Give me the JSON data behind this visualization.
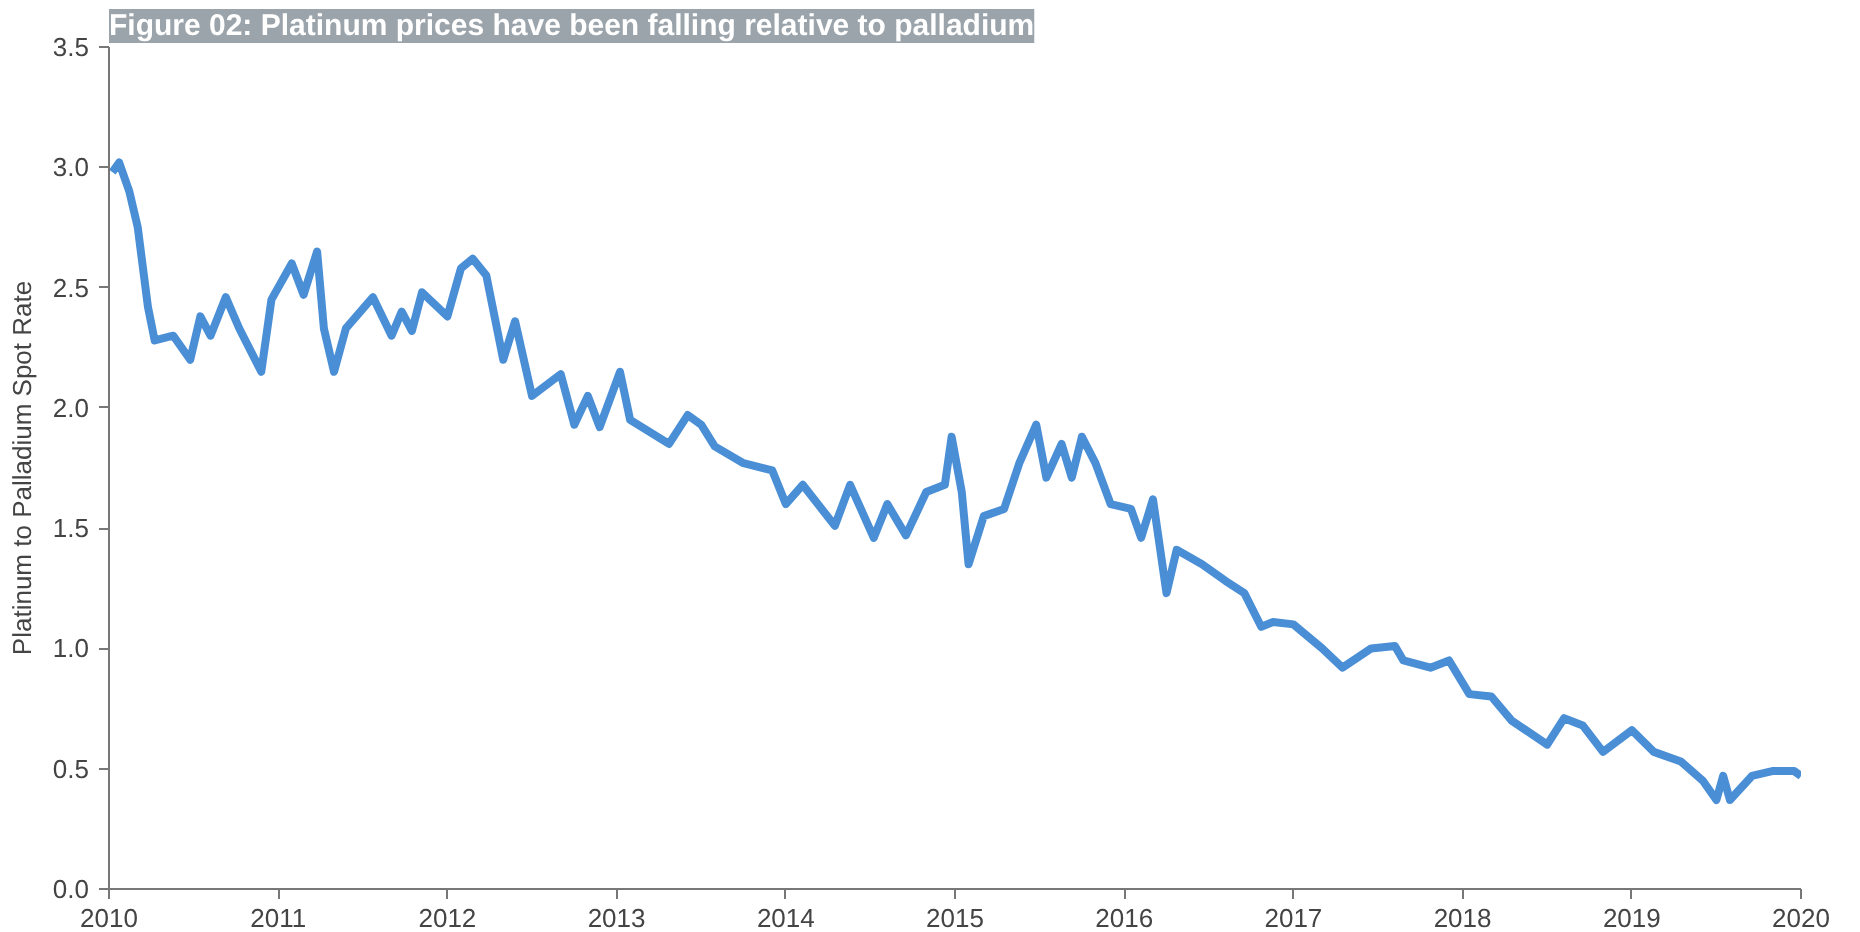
{
  "chart_data": {
    "type": "line",
    "title": "Figure 02: Platinum prices have been falling relative to palladium",
    "ylabel": "Platinum to Palladium Spot Rate",
    "xlim": [
      2010,
      2020
    ],
    "xticks": [
      2010,
      2011,
      2012,
      2013,
      2014,
      2015,
      2016,
      2017,
      2018,
      2019,
      2020
    ],
    "ylim": [
      0,
      3.5
    ],
    "yticks": [
      {
        "value": 0,
        "label": "0.0"
      },
      {
        "value": 0.5,
        "label": "0.5"
      },
      {
        "value": 1,
        "label": "1.0"
      },
      {
        "value": 1.5,
        "label": "1.5"
      },
      {
        "value": 2,
        "label": "2.0"
      },
      {
        "value": 2.5,
        "label": "2.5"
      },
      {
        "value": 3,
        "label": "3.0"
      },
      {
        "value": 3.5,
        "label": "3.5"
      }
    ],
    "grid": false,
    "line_style": "solid",
    "series": [
      {
        "color": "#4a8fd6",
        "x": [
          2010.02,
          2010.06,
          2010.12,
          2010.17,
          2010.23,
          2010.27,
          2010.38,
          2010.48,
          2010.54,
          2010.6,
          2010.69,
          2010.77,
          2010.9,
          2010.96,
          2011.08,
          2011.15,
          2011.23,
          2011.27,
          2011.33,
          2011.4,
          2011.56,
          2011.67,
          2011.73,
          2011.79,
          2011.85,
          2012.0,
          2012.08,
          2012.15,
          2012.23,
          2012.33,
          2012.4,
          2012.5,
          2012.67,
          2012.75,
          2012.83,
          2012.9,
          2013.02,
          2013.08,
          2013.31,
          2013.42,
          2013.5,
          2013.58,
          2013.75,
          2013.92,
          2014.0,
          2014.1,
          2014.29,
          2014.38,
          2014.52,
          2014.6,
          2014.71,
          2014.83,
          2014.94,
          2014.98,
          2015.04,
          2015.08,
          2015.17,
          2015.29,
          2015.38,
          2015.48,
          2015.54,
          2015.63,
          2015.69,
          2015.75,
          2015.83,
          2015.92,
          2016.04,
          2016.1,
          2016.17,
          2016.25,
          2016.31,
          2016.46,
          2016.6,
          2016.71,
          2016.81,
          2016.88,
          2017.0,
          2017.17,
          2017.29,
          2017.46,
          2017.6,
          2017.65,
          2017.81,
          2017.92,
          2018.04,
          2018.17,
          2018.29,
          2018.5,
          2018.6,
          2018.71,
          2018.83,
          2019.0,
          2019.13,
          2019.29,
          2019.42,
          2019.5,
          2019.54,
          2019.58,
          2019.71,
          2019.83,
          2019.96,
          2020.0
        ],
        "values": [
          2.98,
          3.02,
          2.9,
          2.75,
          2.42,
          2.28,
          2.3,
          2.2,
          2.38,
          2.3,
          2.46,
          2.33,
          2.15,
          2.45,
          2.6,
          2.47,
          2.65,
          2.33,
          2.15,
          2.33,
          2.46,
          2.3,
          2.4,
          2.32,
          2.48,
          2.38,
          2.58,
          2.62,
          2.55,
          2.2,
          2.36,
          2.05,
          2.14,
          1.93,
          2.05,
          1.92,
          2.15,
          1.95,
          1.85,
          1.97,
          1.93,
          1.84,
          1.77,
          1.74,
          1.6,
          1.68,
          1.51,
          1.68,
          1.46,
          1.6,
          1.47,
          1.65,
          1.68,
          1.88,
          1.65,
          1.35,
          1.55,
          1.58,
          1.77,
          1.93,
          1.71,
          1.85,
          1.71,
          1.88,
          1.77,
          1.6,
          1.58,
          1.46,
          1.62,
          1.23,
          1.41,
          1.35,
          1.28,
          1.23,
          1.09,
          1.11,
          1.1,
          1.0,
          0.92,
          1.0,
          1.01,
          0.95,
          0.92,
          0.95,
          0.81,
          0.8,
          0.7,
          0.6,
          0.71,
          0.68,
          0.57,
          0.66,
          0.57,
          0.53,
          0.45,
          0.37,
          0.47,
          0.37,
          0.47,
          0.49,
          0.49,
          0.47
        ]
      }
    ]
  }
}
